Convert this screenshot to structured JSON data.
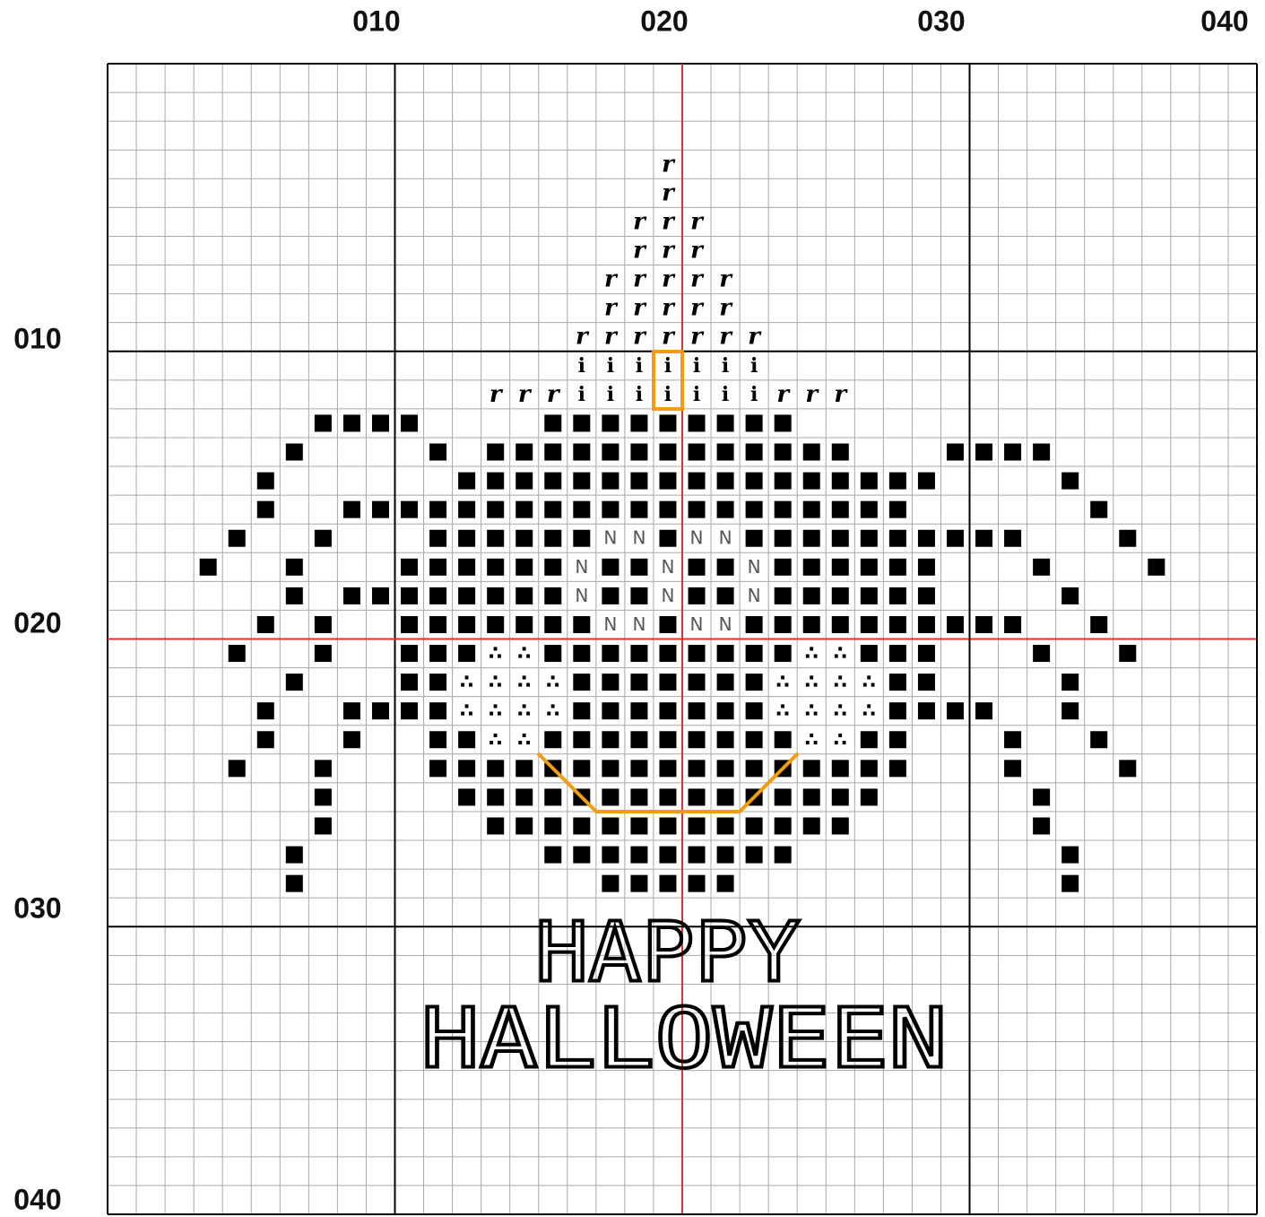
{
  "axis": {
    "x_labels": [
      "010",
      "020",
      "030",
      "040"
    ],
    "y_labels": [
      "010",
      "020",
      "030",
      "040"
    ]
  },
  "symbols": [
    "r",
    "i",
    "N",
    "∴"
  ],
  "text": {
    "line1": "HAPPY",
    "line2": "HALLOWEEN"
  }
}
